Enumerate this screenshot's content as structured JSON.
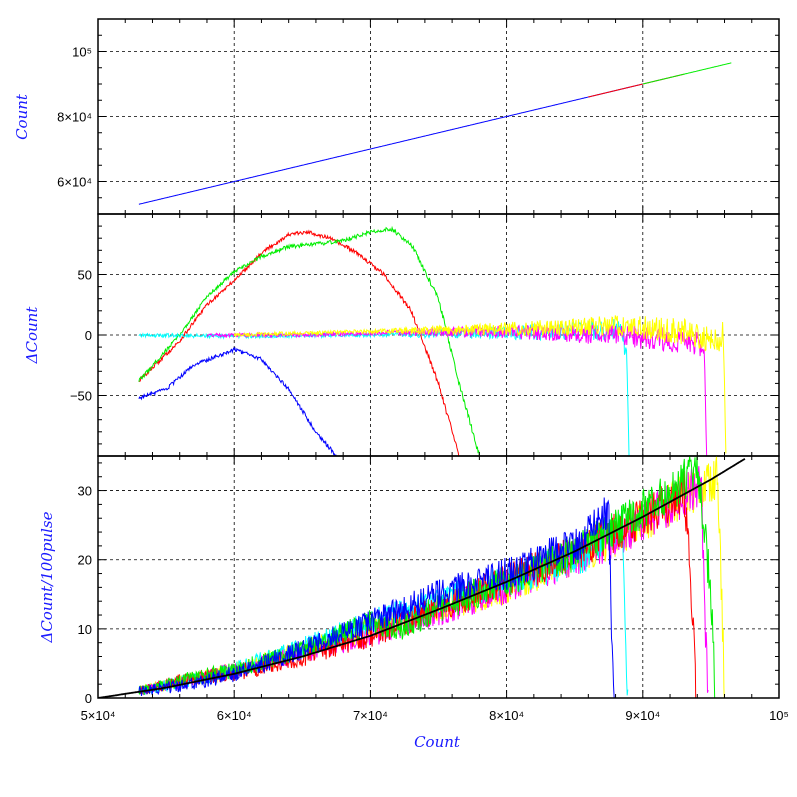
{
  "chart_data": [
    {
      "type": "line",
      "ylabel": "Count",
      "xlim": [
        50000,
        100000
      ],
      "ylim": [
        50000,
        110000
      ],
      "grid": true,
      "y_ticks": [
        {
          "value": 60000,
          "label": "6×10⁴"
        },
        {
          "value": 80000,
          "label": "8×10⁴"
        },
        {
          "value": 100000,
          "label": "10⁵"
        }
      ],
      "series": [
        {
          "color": "#0000ff",
          "x": [
            53000,
            90000
          ],
          "y": [
            53000,
            90000
          ]
        },
        {
          "color": "#ff0000",
          "x": [
            86000,
            93000
          ],
          "y": [
            86000,
            93000
          ]
        },
        {
          "color": "#00ee00",
          "x": [
            90000,
            96500
          ],
          "y": [
            90000,
            96500
          ]
        }
      ]
    },
    {
      "type": "line",
      "ylabel": "ΔCount",
      "xlim": [
        50000,
        100000
      ],
      "ylim": [
        -100,
        100
      ],
      "grid": true,
      "y_ticks": [
        {
          "value": -50,
          "label": "−50"
        },
        {
          "value": 0,
          "label": "0"
        },
        {
          "value": 50,
          "label": "50"
        }
      ],
      "series": [
        {
          "color": "#0000ff",
          "x": [
            53000,
            55000,
            57000,
            60000,
            62000,
            64000,
            66000,
            67500
          ],
          "y": [
            -52,
            -45,
            -25,
            -12,
            -20,
            -45,
            -80,
            -100
          ]
        },
        {
          "color": "#ff0000",
          "x": [
            53000,
            56000,
            58000,
            60000,
            62000,
            64000,
            65500,
            67000,
            69000,
            71000,
            73000,
            75000,
            76500
          ],
          "y": [
            -38,
            -5,
            25,
            45,
            68,
            83,
            85,
            80,
            68,
            50,
            20,
            -40,
            -100
          ]
        },
        {
          "color": "#00ee00",
          "x": [
            53000,
            56000,
            58000,
            60000,
            62000,
            64000,
            66000,
            68000,
            70000,
            71500,
            73000,
            75000,
            76500,
            78000
          ],
          "y": [
            -38,
            0,
            32,
            52,
            65,
            73,
            75,
            78,
            85,
            88,
            75,
            30,
            -40,
            -100
          ]
        },
        {
          "color": "#00ffff",
          "x": [
            53000,
            60000,
            70000,
            80000,
            85000,
            88500,
            88800,
            89000
          ],
          "y": [
            0,
            -1,
            0,
            2,
            3,
            5,
            -20,
            -100
          ]
        },
        {
          "color": "#ff00ff",
          "x": [
            58000,
            65000,
            72000,
            80000,
            88000,
            93000,
            94500,
            94700
          ],
          "y": [
            0,
            0,
            2,
            3,
            0,
            -5,
            -8,
            -100
          ]
        },
        {
          "color": "#ffff00",
          "x": [
            60000,
            70000,
            80000,
            88000,
            93000,
            95500,
            95900,
            96100
          ],
          "y": [
            0,
            3,
            5,
            8,
            3,
            -5,
            0,
            -100
          ]
        }
      ]
    },
    {
      "type": "line",
      "xlabel": "Count",
      "ylabel": "ΔCount/100pulse",
      "xlim": [
        50000,
        100000
      ],
      "ylim": [
        0,
        35
      ],
      "grid": true,
      "x_ticks": [
        {
          "value": 50000,
          "label": "5×10⁴"
        },
        {
          "value": 60000,
          "label": "6×10⁴"
        },
        {
          "value": 70000,
          "label": "7×10⁴"
        },
        {
          "value": 80000,
          "label": "8×10⁴"
        },
        {
          "value": 90000,
          "label": "9×10⁴"
        },
        {
          "value": 100000,
          "label": "10⁵"
        }
      ],
      "y_ticks": [
        {
          "value": 0,
          "label": "0"
        },
        {
          "value": 10,
          "label": "10"
        },
        {
          "value": 20,
          "label": "20"
        },
        {
          "value": 30,
          "label": "30"
        }
      ],
      "series": [
        {
          "color": "#ffff00",
          "x": [
            53000,
            60000,
            70000,
            80000,
            88000,
            92000,
            95500,
            95800,
            96000
          ],
          "y": [
            1,
            4,
            10,
            16,
            23,
            28,
            32,
            15,
            0
          ]
        },
        {
          "color": "#ff00ff",
          "x": [
            53000,
            60000,
            70000,
            80000,
            88000,
            92000,
            94300,
            94600,
            94800
          ],
          "y": [
            1,
            4,
            9,
            16,
            23,
            28,
            31,
            10,
            0
          ]
        },
        {
          "color": "#00ffff",
          "x": [
            53000,
            60000,
            70000,
            80000,
            86000,
            88500,
            88700,
            88900
          ],
          "y": [
            1,
            4,
            11,
            17,
            21,
            25,
            10,
            0
          ]
        },
        {
          "color": "#ff0000",
          "x": [
            53000,
            57000,
            60000,
            65000,
            70000,
            75000,
            80000,
            85000,
            90000,
            93000,
            93700,
            93900
          ],
          "y": [
            1,
            3,
            3.5,
            6,
            9,
            13,
            17,
            21,
            26,
            30,
            12,
            0
          ]
        },
        {
          "color": "#00ee00",
          "x": [
            53000,
            57000,
            60000,
            65000,
            70000,
            72000,
            75000,
            80000,
            85000,
            90000,
            94000,
            95000,
            95300
          ],
          "y": [
            1,
            3,
            4,
            7,
            11,
            10,
            13,
            17,
            21,
            27,
            33,
            15,
            0
          ]
        },
        {
          "color": "#0000ff",
          "x": [
            53000,
            57000,
            60000,
            65000,
            70000,
            75000,
            80000,
            85000,
            87500,
            87700,
            87900
          ],
          "y": [
            1,
            2,
            3.5,
            7,
            11,
            15,
            18,
            22,
            27,
            10,
            0
          ]
        },
        {
          "color": "#000000",
          "x": [
            50000,
            55000,
            60000,
            65000,
            70000,
            75000,
            80000,
            85000,
            90000,
            95000,
            97500
          ],
          "y": [
            0,
            1.5,
            3.5,
            6,
            9,
            12.8,
            16.8,
            21.2,
            26.2,
            31.6,
            34.6
          ]
        }
      ]
    }
  ]
}
